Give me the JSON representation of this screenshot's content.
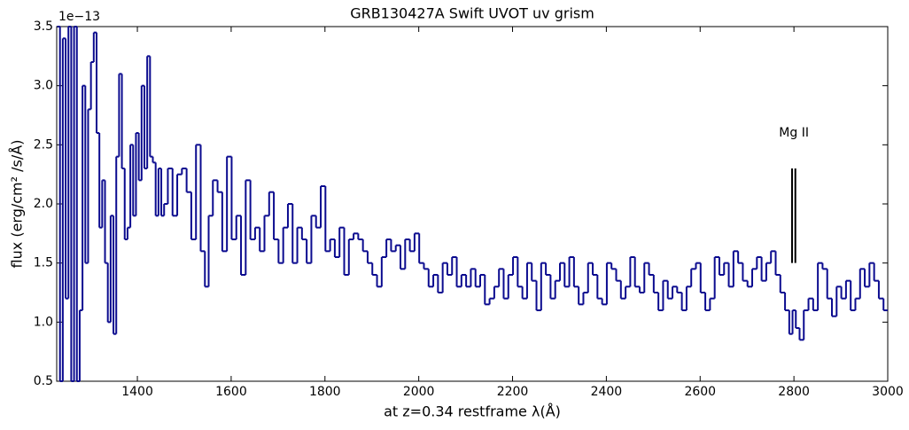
{
  "chart_data": {
    "type": "step-line",
    "title": "GRB130427A Swift UVOT uv grism",
    "x_label": "at z=0.34 restframe λ(Å)",
    "y_label": "flux (erg/cm² /s/Å)",
    "y_offset_label": "1e−13",
    "xlim": [
      1228,
      3000
    ],
    "ylim": [
      0.5,
      3.5
    ],
    "xticks": [
      1400,
      1600,
      1800,
      2000,
      2200,
      2400,
      2600,
      2800,
      3000
    ],
    "yticks": [
      0.5,
      {
        "value": 1,
        "label": "1.0"
      },
      1.5,
      {
        "value": 2,
        "label": "2.0"
      },
      2.5,
      {
        "value": 3,
        "label": "3.0"
      },
      3.5
    ],
    "annotation": {
      "text": "Mg II",
      "x": 2800,
      "y": 2.6,
      "lines_x": [
        2796,
        2803
      ],
      "lines_y": [
        1.5,
        2.3
      ]
    },
    "series": [
      {
        "color": "#0b0b8f",
        "x": [
          1232,
          1238,
          1244,
          1250,
          1256,
          1262,
          1268,
          1274,
          1280,
          1286,
          1292,
          1298,
          1304,
          1310,
          1316,
          1322,
          1328,
          1334,
          1340,
          1346,
          1352,
          1358,
          1364,
          1370,
          1376,
          1382,
          1388,
          1394,
          1400,
          1406,
          1412,
          1418,
          1424,
          1430,
          1436,
          1442,
          1448,
          1454,
          1460,
          1470,
          1480,
          1490,
          1500,
          1510,
          1520,
          1530,
          1540,
          1548,
          1556,
          1566,
          1576,
          1586,
          1596,
          1606,
          1616,
          1626,
          1636,
          1646,
          1656,
          1666,
          1676,
          1686,
          1696,
          1706,
          1716,
          1726,
          1736,
          1746,
          1756,
          1766,
          1776,
          1786,
          1796,
          1806,
          1816,
          1826,
          1836,
          1846,
          1856,
          1866,
          1876,
          1886,
          1896,
          1906,
          1916,
          1926,
          1936,
          1946,
          1956,
          1966,
          1976,
          1986,
          1996,
          2006,
          2016,
          2026,
          2036,
          2046,
          2056,
          2066,
          2076,
          2086,
          2096,
          2106,
          2116,
          2126,
          2136,
          2146,
          2156,
          2166,
          2176,
          2186,
          2196,
          2206,
          2216,
          2226,
          2236,
          2246,
          2256,
          2266,
          2276,
          2286,
          2296,
          2306,
          2316,
          2326,
          2336,
          2346,
          2356,
          2366,
          2376,
          2386,
          2396,
          2406,
          2416,
          2426,
          2436,
          2446,
          2456,
          2466,
          2476,
          2486,
          2496,
          2506,
          2516,
          2526,
          2536,
          2546,
          2556,
          2566,
          2576,
          2586,
          2596,
          2606,
          2616,
          2626,
          2636,
          2646,
          2656,
          2666,
          2676,
          2686,
          2696,
          2706,
          2716,
          2726,
          2736,
          2746,
          2756,
          2766,
          2776,
          2786,
          2794,
          2800,
          2808,
          2816,
          2826,
          2836,
          2846,
          2856,
          2866,
          2876,
          2886,
          2896,
          2906,
          2916,
          2926,
          2936,
          2946,
          2956,
          2966,
          2976,
          2986,
          2996
        ],
        "values": [
          3.5,
          0.5,
          3.4,
          1.2,
          3.5,
          0.5,
          3.5,
          0.5,
          1.1,
          3.0,
          1.5,
          2.8,
          3.2,
          3.45,
          2.6,
          1.8,
          2.2,
          1.5,
          1.0,
          1.9,
          0.9,
          2.4,
          3.1,
          2.3,
          1.7,
          1.8,
          2.5,
          1.9,
          2.6,
          2.2,
          3.0,
          2.3,
          3.25,
          2.4,
          2.35,
          1.9,
          2.3,
          1.9,
          2.0,
          2.3,
          1.9,
          2.25,
          2.3,
          2.1,
          1.7,
          2.5,
          1.6,
          1.3,
          1.9,
          2.2,
          2.1,
          1.6,
          2.4,
          1.7,
          1.9,
          1.4,
          2.2,
          1.7,
          1.8,
          1.6,
          1.9,
          2.1,
          1.7,
          1.5,
          1.8,
          2.0,
          1.5,
          1.8,
          1.7,
          1.5,
          1.9,
          1.8,
          2.15,
          1.6,
          1.7,
          1.55,
          1.8,
          1.4,
          1.7,
          1.75,
          1.7,
          1.6,
          1.5,
          1.4,
          1.3,
          1.55,
          1.7,
          1.6,
          1.65,
          1.45,
          1.7,
          1.6,
          1.75,
          1.5,
          1.45,
          1.3,
          1.4,
          1.25,
          1.5,
          1.4,
          1.55,
          1.3,
          1.4,
          1.3,
          1.45,
          1.3,
          1.4,
          1.15,
          1.2,
          1.3,
          1.45,
          1.2,
          1.4,
          1.55,
          1.3,
          1.2,
          1.5,
          1.35,
          1.1,
          1.5,
          1.4,
          1.2,
          1.35,
          1.5,
          1.3,
          1.55,
          1.3,
          1.15,
          1.25,
          1.5,
          1.4,
          1.2,
          1.15,
          1.5,
          1.45,
          1.35,
          1.2,
          1.3,
          1.55,
          1.3,
          1.25,
          1.5,
          1.4,
          1.25,
          1.1,
          1.35,
          1.2,
          1.3,
          1.25,
          1.1,
          1.3,
          1.45,
          1.5,
          1.25,
          1.1,
          1.2,
          1.55,
          1.4,
          1.5,
          1.3,
          1.6,
          1.5,
          1.35,
          1.3,
          1.45,
          1.55,
          1.35,
          1.5,
          1.6,
          1.4,
          1.25,
          1.1,
          0.9,
          1.1,
          0.95,
          0.85,
          1.1,
          1.2,
          1.1,
          1.5,
          1.45,
          1.2,
          1.05,
          1.3,
          1.2,
          1.35,
          1.1,
          1.2,
          1.45,
          1.3,
          1.5,
          1.35,
          1.2,
          1.1
        ]
      }
    ]
  }
}
